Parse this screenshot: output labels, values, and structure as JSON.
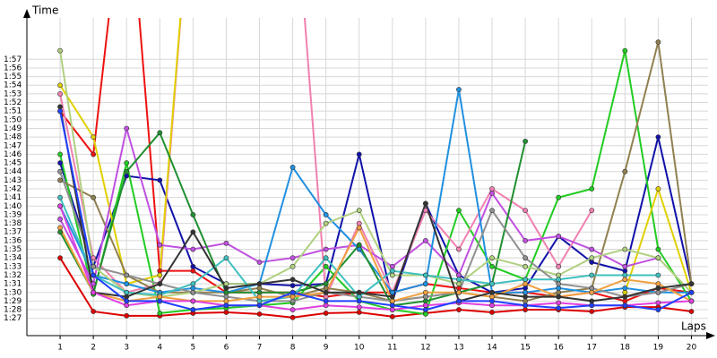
{
  "chart_data": {
    "type": "line",
    "y_label": "Time",
    "x_label": "Laps",
    "xlim": [
      0,
      20.5
    ],
    "ylim": [
      85,
      121.8
    ],
    "xticks": [
      1,
      2,
      3,
      4,
      5,
      6,
      7,
      8,
      9,
      10,
      11,
      12,
      13,
      14,
      15,
      16,
      17,
      18,
      19,
      20
    ],
    "yticks": [
      {
        "value": 87,
        "label": "1:27"
      },
      {
        "value": 88,
        "label": "1:28"
      },
      {
        "value": 89,
        "label": "1:29"
      },
      {
        "value": 90,
        "label": "1:30"
      },
      {
        "value": 91,
        "label": "1:31"
      },
      {
        "value": 92,
        "label": "1:32"
      },
      {
        "value": 93,
        "label": "1:33"
      },
      {
        "value": 94,
        "label": "1:34"
      },
      {
        "value": 95,
        "label": "1:35"
      },
      {
        "value": 96,
        "label": "1:36"
      },
      {
        "value": 97,
        "label": "1:37"
      },
      {
        "value": 98,
        "label": "1:38"
      },
      {
        "value": 99,
        "label": "1:39"
      },
      {
        "value": 100,
        "label": "1:40"
      },
      {
        "value": 101,
        "label": "1:41"
      },
      {
        "value": 102,
        "label": "1:42"
      },
      {
        "value": 103,
        "label": "1:43"
      },
      {
        "value": 104,
        "label": "1:44"
      },
      {
        "value": 105,
        "label": "1:45"
      },
      {
        "value": 106,
        "label": "1:46"
      },
      {
        "value": 107,
        "label": "1:47"
      },
      {
        "value": 108,
        "label": "1:48"
      },
      {
        "value": 109,
        "label": "1:49"
      },
      {
        "value": 110,
        "label": "1:50"
      },
      {
        "value": 111,
        "label": "1:51"
      },
      {
        "value": 112,
        "label": "1:52"
      },
      {
        "value": 113,
        "label": "1:53"
      },
      {
        "value": 114,
        "label": "1:54"
      },
      {
        "value": 115,
        "label": "1:55"
      },
      {
        "value": 116,
        "label": "1:56"
      },
      {
        "value": 117,
        "label": "1:57"
      }
    ],
    "grid": true,
    "x": [
      1,
      2,
      3,
      4,
      5,
      6,
      7,
      8,
      9,
      10,
      11,
      12,
      13,
      14,
      15,
      16,
      17,
      18,
      19,
      20
    ],
    "series": [
      {
        "color": "#ee1111",
        "values": [
          111,
          106,
          140,
          92.5,
          92.5,
          90,
          90,
          90,
          89.5,
          90,
          90,
          91,
          90.5,
          90,
          90,
          89.5,
          90,
          89,
          90.5,
          90
        ]
      },
      {
        "color": "#dd0000",
        "values": [
          94,
          87.8,
          87.3,
          87.3,
          87.6,
          87.7,
          87.5,
          87.1,
          87.6,
          87.7,
          87.2,
          87.6,
          88,
          87.7,
          88,
          88,
          87.8,
          88.3,
          88.3,
          87.8
        ]
      },
      {
        "color": "#1111aa",
        "values": [
          105,
          93,
          103.5,
          103,
          93,
          91,
          91,
          90.8,
          91,
          106,
          89,
          100.3,
          92,
          90,
          90.5,
          96.5,
          93.5,
          92.5,
          108,
          91
        ]
      },
      {
        "color": "#22cc22",
        "values": [
          106,
          89.8,
          105,
          87.6,
          88,
          88.2,
          88.5,
          88.8,
          93,
          89,
          88,
          87.5,
          99.5,
          93,
          91.5,
          101,
          102,
          118,
          95,
          89
        ]
      },
      {
        "color": "#f080b0",
        "values": [
          113,
          94,
          90,
          91,
          140,
          null,
          null,
          140,
          89.5,
          98,
          90,
          99.5,
          95,
          102,
          99.5,
          93,
          99.5,
          null,
          null,
          null
        ]
      },
      {
        "color": "#e0d000",
        "values": [
          114,
          108,
          91,
          92,
          140,
          null,
          null,
          null,
          null,
          null,
          null,
          null,
          null,
          null,
          null,
          null,
          null,
          90,
          102,
          90
        ]
      },
      {
        "color": "#908050",
        "values": [
          103,
          101,
          92,
          90,
          90,
          90,
          90.5,
          89.5,
          90.5,
          90,
          89,
          89.5,
          90,
          89.5,
          89,
          90,
          90.5,
          104,
          119,
          91
        ]
      },
      {
        "color": "#c050e0",
        "values": [
          98.5,
          91,
          109,
          95.5,
          95,
          95.7,
          93.5,
          94,
          95,
          95.5,
          93,
          96,
          92,
          101.5,
          96,
          96.5,
          95,
          93,
          94,
          null
        ]
      },
      {
        "color": "#2090e0",
        "values": [
          100,
          92,
          91,
          90,
          90.5,
          90,
          91,
          104.5,
          99,
          95,
          90,
          91,
          113.5,
          90,
          90,
          90.5,
          90,
          90.5,
          90,
          90
        ]
      },
      {
        "color": "#209030",
        "values": [
          97,
          90,
          104,
          108.5,
          99,
          90,
          90,
          90,
          91,
          95.5,
          88.5,
          89,
          90,
          91,
          107.5,
          null,
          null,
          null,
          null,
          null
        ]
      },
      {
        "color": "#b0d080",
        "values": [
          118,
          93,
          90,
          89.5,
          90,
          91,
          91,
          93,
          98,
          99.5,
          92,
          92,
          91,
          94,
          93,
          92,
          94,
          95,
          94,
          90
        ]
      },
      {
        "color": "#909090",
        "values": [
          104,
          93,
          92,
          91,
          90,
          89.5,
          89,
          89,
          90,
          89.5,
          89,
          89.5,
          90,
          99.5,
          94,
          91,
          90.5,
          89.5,
          90,
          91
        ]
      },
      {
        "color": "#40c0c0",
        "values": [
          101,
          92,
          90,
          89.7,
          91,
          94,
          89,
          89.5,
          94,
          89.5,
          92.5,
          92,
          91.5,
          91,
          91.5,
          91.5,
          92,
          92,
          92,
          null
        ]
      },
      {
        "color": "#f0a040",
        "values": [
          97.5,
          90,
          89,
          89.5,
          89,
          89,
          89.5,
          89.5,
          90,
          97.5,
          89,
          90,
          90,
          89.5,
          91,
          89.5,
          90,
          91.5,
          91,
          89
        ]
      },
      {
        "color": "#333333",
        "values": [
          111.5,
          90,
          89.5,
          91,
          97,
          90.5,
          91,
          91.5,
          90,
          90,
          89.5,
          100.3,
          89,
          90,
          89.5,
          89.5,
          89,
          89.5,
          90.5,
          91
        ]
      },
      {
        "color": "#e040e0",
        "values": [
          100,
          90,
          88.5,
          89,
          89,
          88.5,
          88.5,
          88,
          88.5,
          88.3,
          88,
          88.5,
          88.8,
          88.5,
          88.5,
          88.8,
          88.5,
          88.5,
          88.8,
          89
        ]
      },
      {
        "color": "#2040ff",
        "values": [
          111,
          92,
          89,
          89,
          88,
          88.5,
          88.5,
          90,
          89,
          89,
          88.5,
          88,
          89,
          89,
          88.5,
          88.2,
          88.5,
          88.5,
          88,
          90
        ]
      }
    ]
  }
}
